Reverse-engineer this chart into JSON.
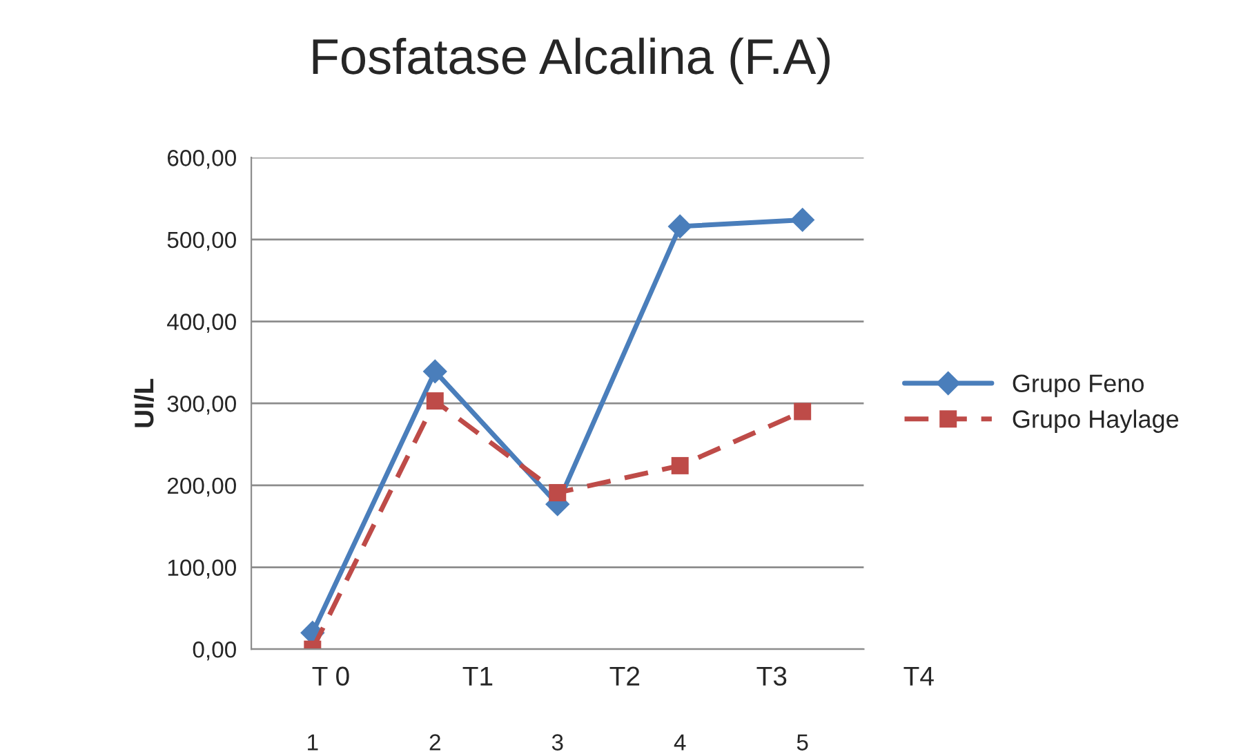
{
  "chart_data": {
    "type": "line",
    "title": "Fosfatase Alcalina (F.A)",
    "ylabel": "UI/L",
    "categories": [
      "1",
      "2",
      "3",
      "4",
      "5"
    ],
    "series": [
      {
        "name": "Grupo Feno",
        "color": "#4a7ebb",
        "values": [
          20,
          339,
          177,
          516,
          524
        ],
        "marker": "diamond",
        "line_style": "solid"
      },
      {
        "name": "Grupo Haylage",
        "color": "#be4b48",
        "values": [
          0,
          303,
          191,
          224,
          290
        ],
        "marker": "square",
        "line_style": "dashed"
      }
    ],
    "ylim": [
      0,
      600
    ],
    "yticks": [
      {
        "value": 0,
        "label": "0,00"
      },
      {
        "value": 100,
        "label": "100,00"
      },
      {
        "value": 200,
        "label": "200,00"
      },
      {
        "value": 300,
        "label": "300,00"
      },
      {
        "value": 400,
        "label": "400,00"
      },
      {
        "value": 500,
        "label": "500,00"
      },
      {
        "value": 600,
        "label": "600,00"
      }
    ],
    "grid": "y",
    "legend": "right",
    "annotations": [
      "T 0",
      "T1",
      "T2",
      "T3",
      "T4"
    ]
  }
}
